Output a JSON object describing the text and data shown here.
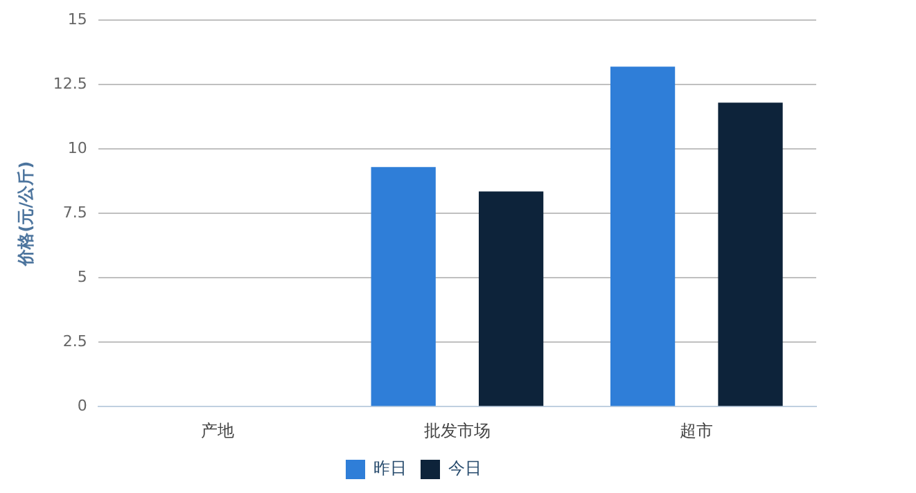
{
  "chart_data": {
    "type": "bar",
    "ylabel": "价格(元/公斤)",
    "categories": [
      "产地",
      "批发市场",
      "超市"
    ],
    "series": [
      {
        "name": "昨日",
        "color": "#2f7ed8",
        "values": [
          null,
          9.3,
          13.2
        ]
      },
      {
        "name": "今日",
        "color": "#0d233a",
        "values": [
          null,
          8.35,
          11.8
        ]
      }
    ],
    "ylim": [
      0,
      15
    ],
    "yticks": [
      0,
      2.5,
      5,
      7.5,
      10,
      12.5,
      15
    ],
    "grid": "y",
    "legend": "bottom"
  }
}
